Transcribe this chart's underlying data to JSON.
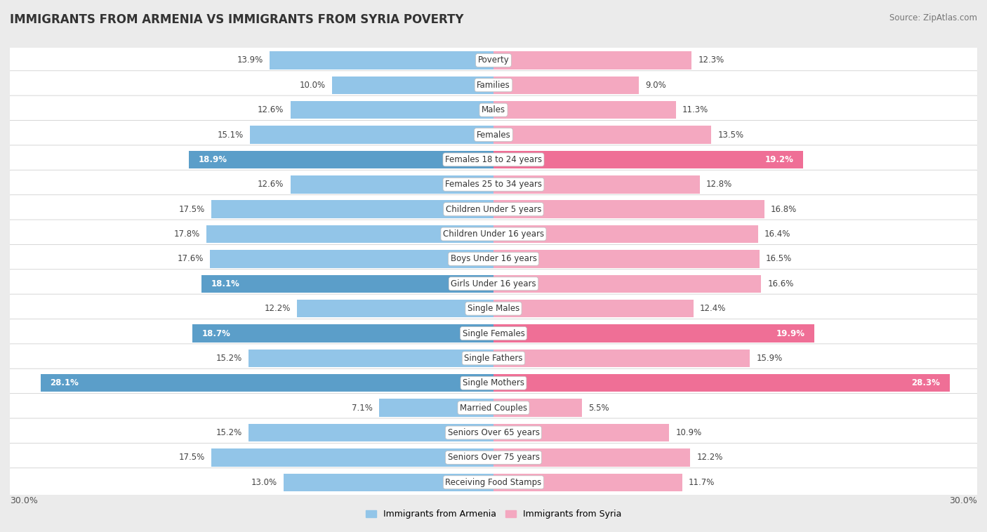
{
  "title": "IMMIGRANTS FROM ARMENIA VS IMMIGRANTS FROM SYRIA POVERTY",
  "source": "Source: ZipAtlas.com",
  "categories": [
    "Poverty",
    "Families",
    "Males",
    "Females",
    "Females 18 to 24 years",
    "Females 25 to 34 years",
    "Children Under 5 years",
    "Children Under 16 years",
    "Boys Under 16 years",
    "Girls Under 16 years",
    "Single Males",
    "Single Females",
    "Single Fathers",
    "Single Mothers",
    "Married Couples",
    "Seniors Over 65 years",
    "Seniors Over 75 years",
    "Receiving Food Stamps"
  ],
  "armenia_values": [
    13.9,
    10.0,
    12.6,
    15.1,
    18.9,
    12.6,
    17.5,
    17.8,
    17.6,
    18.1,
    12.2,
    18.7,
    15.2,
    28.1,
    7.1,
    15.2,
    17.5,
    13.0
  ],
  "syria_values": [
    12.3,
    9.0,
    11.3,
    13.5,
    19.2,
    12.8,
    16.8,
    16.4,
    16.5,
    16.6,
    12.4,
    19.9,
    15.9,
    28.3,
    5.5,
    10.9,
    12.2,
    11.7
  ],
  "armenia_normal_color": "#92C5E8",
  "armenia_highlight_color": "#5B9EC9",
  "syria_normal_color": "#F4A8C0",
  "syria_highlight_color": "#EF6F96",
  "background_color": "#EBEBEB",
  "row_color": "#FFFFFF",
  "max_value": 30.0,
  "legend_armenia": "Immigrants from Armenia",
  "legend_syria": "Immigrants from Syria",
  "armenia_highlighted_indices": [
    4,
    9,
    11,
    13
  ],
  "syria_highlighted_indices": [
    4,
    11,
    13
  ]
}
